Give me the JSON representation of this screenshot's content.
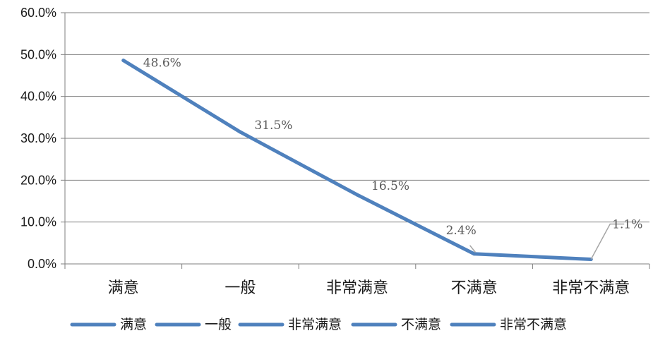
{
  "chart_data": {
    "type": "line",
    "title": "",
    "xlabel": "",
    "ylabel": "",
    "categories": [
      "满意",
      "一般",
      "非常满意",
      "不满意",
      "非常不满意"
    ],
    "values": [
      48.6,
      31.5,
      16.5,
      2.4,
      1.1
    ],
    "data_labels": [
      "48.6%",
      "31.5%",
      "16.5%",
      "2.4%",
      "1.1%"
    ],
    "y_ticks": [
      "0.0%",
      "10.0%",
      "20.0%",
      "30.0%",
      "40.0%",
      "50.0%",
      "60.0%"
    ],
    "ylim": [
      0,
      60
    ],
    "grid": true,
    "legend_position": "bottom",
    "legend": [
      "满意",
      "一般",
      "非常满意",
      "不满意",
      "非常不满意"
    ],
    "line_color": "#4f81bd",
    "grid_color": "#7f7f7f"
  }
}
